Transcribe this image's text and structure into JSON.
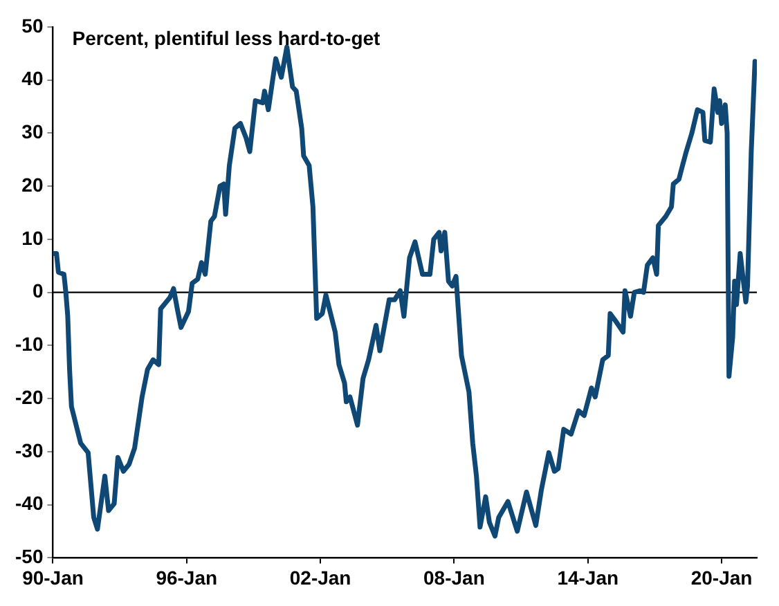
{
  "chart_data": {
    "type": "line",
    "title": "Percent, plentiful less hard-to-get",
    "x": [
      "1990-01",
      "1990-03",
      "1990-04",
      "1990-07",
      "1990-08",
      "1990-09",
      "1990-10",
      "1990-11",
      "1991-04",
      "1991-08",
      "1991-11",
      "1992-01",
      "1992-05",
      "1992-07",
      "1992-10",
      "1992-12",
      "1993-03",
      "1993-06",
      "1993-09",
      "1994-01",
      "1994-04",
      "1994-07",
      "1994-10",
      "1994-11",
      "1995-04",
      "1995-06",
      "1995-08",
      "1995-10",
      "1996-02",
      "1996-04",
      "1996-07",
      "1996-09",
      "1996-11",
      "1997-02",
      "1997-04",
      "1997-07",
      "1997-09",
      "1997-10",
      "1997-12",
      "1998-03",
      "1998-06",
      "1998-09",
      "1998-11",
      "1999-02",
      "1999-06",
      "1999-07",
      "1999-09",
      "2000-01",
      "2000-04",
      "2000-07",
      "2000-10",
      "2000-12",
      "2001-03",
      "2001-04",
      "2001-07",
      "2001-09",
      "2001-11",
      "2002-02",
      "2002-04",
      "2002-09",
      "2002-11",
      "2003-02",
      "2003-03",
      "2003-05",
      "2003-09",
      "2003-12",
      "2004-03",
      "2004-07",
      "2004-09",
      "2005-02",
      "2005-05",
      "2005-08",
      "2005-10",
      "2006-01",
      "2006-04",
      "2006-08",
      "2006-12",
      "2007-02",
      "2007-05",
      "2007-06",
      "2007-08",
      "2007-10",
      "2007-12",
      "2008-02",
      "2008-05",
      "2008-09",
      "2008-11",
      "2009-01",
      "2009-03",
      "2009-06",
      "2009-08",
      "2009-11",
      "2010-01",
      "2010-06",
      "2010-11",
      "2011-04",
      "2011-09",
      "2011-12",
      "2012-04",
      "2012-07",
      "2012-09",
      "2012-12",
      "2013-04",
      "2013-08",
      "2013-11",
      "2014-03",
      "2014-05",
      "2014-09",
      "2014-12",
      "2015-01",
      "2015-04",
      "2015-08",
      "2015-09",
      "2015-12",
      "2016-02",
      "2016-05",
      "2016-07",
      "2016-09",
      "2016-12",
      "2017-02",
      "2017-03",
      "2017-07",
      "2017-10",
      "2017-11",
      "2018-02",
      "2018-04",
      "2018-06",
      "2018-09",
      "2018-12",
      "2019-03",
      "2019-04",
      "2019-07",
      "2019-09",
      "2019-11",
      "2019-12",
      "2020-01",
      "2020-03",
      "2020-04",
      "2020-05",
      "2020-07",
      "2020-08",
      "2020-09",
      "2020-11",
      "2021-02",
      "2021-03",
      "2021-05",
      "2021-07"
    ],
    "series": [
      {
        "color": "#0f4775",
        "values": [
          7.3,
          7.3,
          3.8,
          3.4,
          0,
          -4.5,
          -14.5,
          -21.5,
          -28.4,
          -30.2,
          -42.4,
          -44.6,
          -34.6,
          -41.1,
          -39.8,
          -31.1,
          -33.7,
          -32.4,
          -29.3,
          -19.7,
          -14.5,
          -12.7,
          -13.6,
          -3.1,
          -1,
          0.7,
          -3.1,
          -6.6,
          -3.6,
          1.7,
          2.5,
          5.6,
          3.4,
          13.4,
          14.3,
          20,
          20.4,
          14.7,
          23.9,
          30.9,
          31.8,
          29.1,
          26.5,
          36.1,
          35.7,
          37.9,
          34.4,
          44,
          40.5,
          46.2,
          38.7,
          37.9,
          30.9,
          25.7,
          23.9,
          16.1,
          -4.9,
          -4,
          -0.5,
          -7.5,
          -13.6,
          -17.1,
          -20.6,
          -19.7,
          -25,
          -16.2,
          -12.7,
          -6.2,
          -11,
          -1.4,
          -1.4,
          0.3,
          -4.5,
          6.5,
          9.5,
          3.4,
          3.4,
          10,
          11.3,
          7.8,
          11.3,
          2.1,
          1.2,
          3,
          -11.9,
          -18.8,
          -28.4,
          -34.6,
          -44.2,
          -38.5,
          -43.3,
          -45.9,
          -42.4,
          -39.4,
          -45,
          -37.6,
          -43.9,
          -37.2,
          -30.2,
          -33.7,
          -33.2,
          -25.8,
          -26.7,
          -22.3,
          -23.2,
          -18,
          -19.7,
          -12.7,
          -11.9,
          -4,
          -5.4,
          -7.5,
          0.3,
          -4.5,
          0,
          0.3,
          0,
          5.1,
          6.5,
          3.4,
          12.6,
          14.3,
          16.1,
          20.4,
          21.3,
          23.9,
          26.5,
          30,
          34.4,
          33.9,
          28.6,
          28.3,
          38.3,
          33.9,
          36.1,
          31.8,
          35.3,
          30,
          -15.8,
          -8.4,
          2.1,
          -2.3,
          7.3,
          -1.8,
          1.2,
          26.5,
          43.5
        ]
      }
    ],
    "xlim": [
      "1990-01",
      "2021-08"
    ],
    "xticks": [
      {
        "value": "1990-01",
        "label": "90-Jan"
      },
      {
        "value": "1996-01",
        "label": "96-Jan"
      },
      {
        "value": "2002-01",
        "label": "02-Jan"
      },
      {
        "value": "2008-01",
        "label": "08-Jan"
      },
      {
        "value": "2014-01",
        "label": "14-Jan"
      },
      {
        "value": "2020-01",
        "label": "20-Jan"
      }
    ],
    "ylim": [
      -50,
      50
    ],
    "yticks": [
      -50,
      -40,
      -30,
      -20,
      -10,
      0,
      10,
      20,
      30,
      40,
      50
    ],
    "ref_lines": [
      {
        "axis": "y",
        "value": 0,
        "color": "#000000"
      }
    ],
    "grid": false,
    "legend": false,
    "marker": "none",
    "line_style": "solid"
  }
}
